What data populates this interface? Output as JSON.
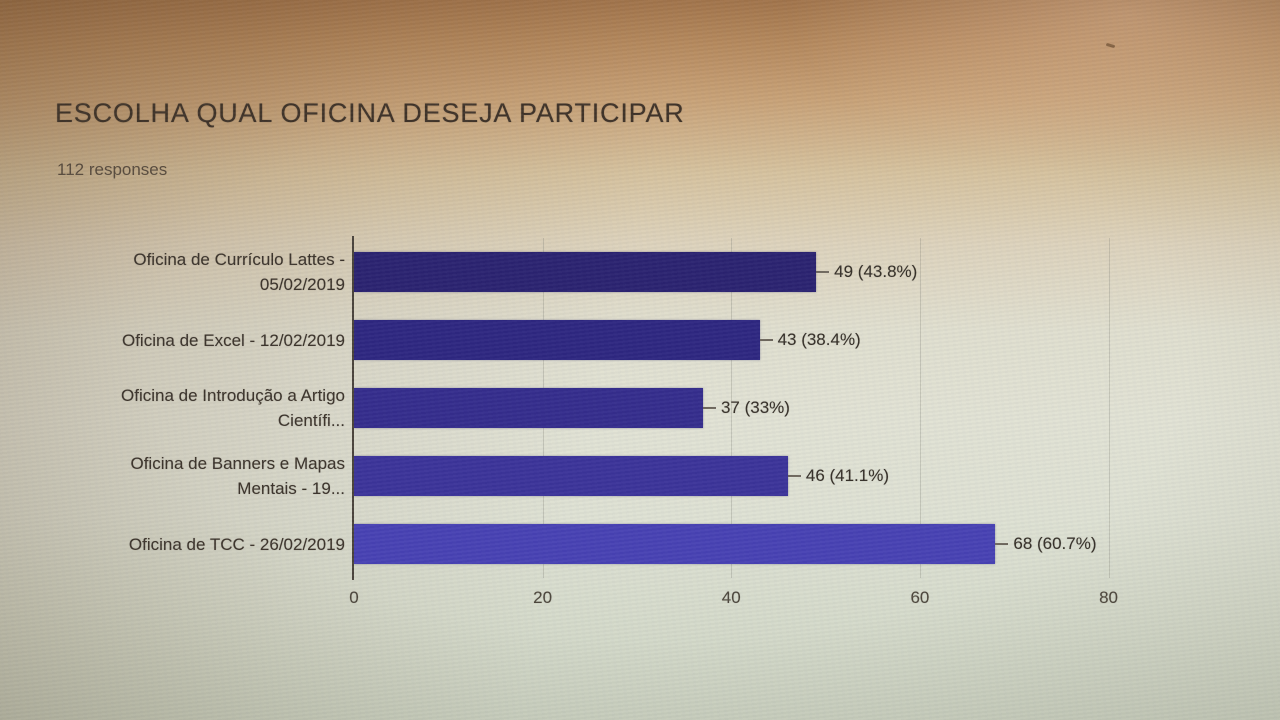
{
  "header": {
    "title": "ESCOLHA QUAL OFICINA DESEJA PARTICIPAR",
    "responses": "112 responses"
  },
  "chart_data": {
    "type": "bar",
    "orientation": "horizontal",
    "title": "ESCOLHA QUAL OFICINA DESEJA PARTICIPAR",
    "subtitle": "112 responses",
    "total_responses": 112,
    "categories": [
      "Oficina de Currículo Lattes - 05/02/2019",
      "Oficina de Excel - 12/02/2019",
      "Oficina de Introdução a Artigo Científi...",
      "Oficina de Banners e Mapas Mentais - 19...",
      "Oficina de TCC - 26/02/2019"
    ],
    "label_lines": [
      [
        "Oficina de Currículo Lattes -",
        "05/02/2019"
      ],
      [
        "Oficina de Excel - 12/02/2019"
      ],
      [
        "Oficina de Introdução a Artigo",
        "Científi..."
      ],
      [
        "Oficina de Banners e Mapas",
        "Mentais - 19..."
      ],
      [
        "Oficina de TCC - 26/02/2019"
      ]
    ],
    "values": [
      49,
      43,
      37,
      46,
      68
    ],
    "percents": [
      43.8,
      38.4,
      33,
      41.1,
      60.7
    ],
    "data_labels": [
      "49 (43.8%)",
      "43 (38.4%)",
      "37 (33%)",
      "46 (41.1%)",
      "68 (60.7%)"
    ],
    "x_ticks": [
      "0",
      "20",
      "40",
      "60",
      "80"
    ],
    "x_tick_values": [
      0,
      20,
      40,
      60,
      80
    ],
    "xlim": [
      0,
      88
    ],
    "grid": true,
    "legend": "none",
    "bar_colors": [
      "#2a2270",
      "#2d2680",
      "#342c8c",
      "#3b3399",
      "#4741b3"
    ],
    "axis_color": "#49423a"
  }
}
